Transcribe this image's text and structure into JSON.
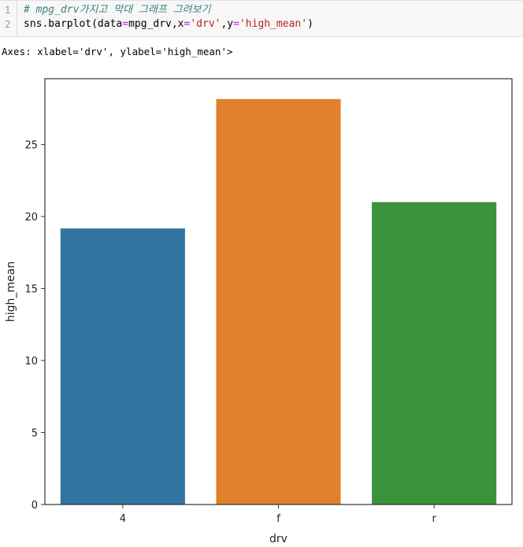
{
  "code_cell": {
    "line_numbers": [
      "1",
      "2"
    ],
    "comment": "# mpg_drv가지고 막대 그래프 그려보기",
    "code_prefix": "sns.barplot(data",
    "code_eq1": "=",
    "code_mid1": "mpg_drv,x",
    "code_eq2": "=",
    "code_str1": "'drv'",
    "code_mid2": ",y",
    "code_eq3": "=",
    "code_str2": "'high_mean'",
    "code_suffix": ")"
  },
  "output": {
    "text": "Axes: xlabel='drv', ylabel='high_mean'>"
  },
  "chart_data": {
    "type": "bar",
    "categories": [
      "4",
      "f",
      "r"
    ],
    "values": [
      19.17,
      28.16,
      21.0
    ],
    "colors": [
      "#3274a1",
      "#e1812c",
      "#3a923a"
    ],
    "xlabel": "drv",
    "ylabel": "high_mean",
    "ylim": [
      0,
      29.57
    ],
    "yticks": [
      0,
      5,
      10,
      15,
      20,
      25
    ],
    "grid": false,
    "legend": "none"
  }
}
